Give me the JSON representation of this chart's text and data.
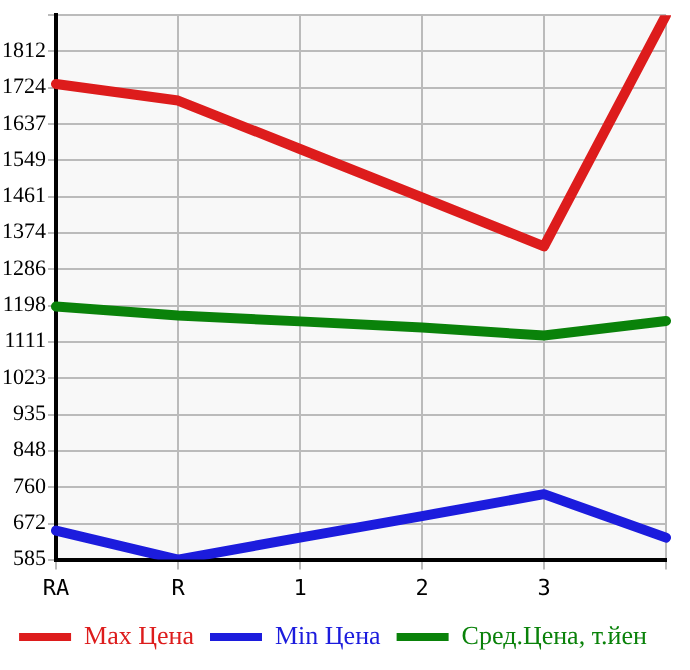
{
  "chart_data": {
    "type": "line",
    "categories": [
      "RA",
      "R",
      "1",
      "2",
      "3",
      null
    ],
    "series": [
      {
        "name": "Max Цена",
        "color": "#dd1c1c",
        "values": [
          1733,
          1693,
          1576,
          1459,
          1341,
          1899
        ]
      },
      {
        "name": "Min Цена",
        "color": "#1c1cdd",
        "values": [
          655,
          585,
          638,
          690,
          743,
          638
        ]
      },
      {
        "name": "Сред.Цена, т.йен",
        "color": "#0a820a",
        "values": [
          1196,
          1174,
          1160,
          1145,
          1126,
          1161
        ]
      }
    ],
    "ylim": [
      585,
      1899
    ],
    "yticks": [
      585,
      672,
      760,
      848,
      935,
      1023,
      1111,
      1198,
      1286,
      1374,
      1461,
      1549,
      1637,
      1724,
      1812,
      {
        "value": 1899,
        "label": null
      }
    ],
    "grid": true,
    "legend": "bottom",
    "marker": "none",
    "line_style": "solid"
  }
}
